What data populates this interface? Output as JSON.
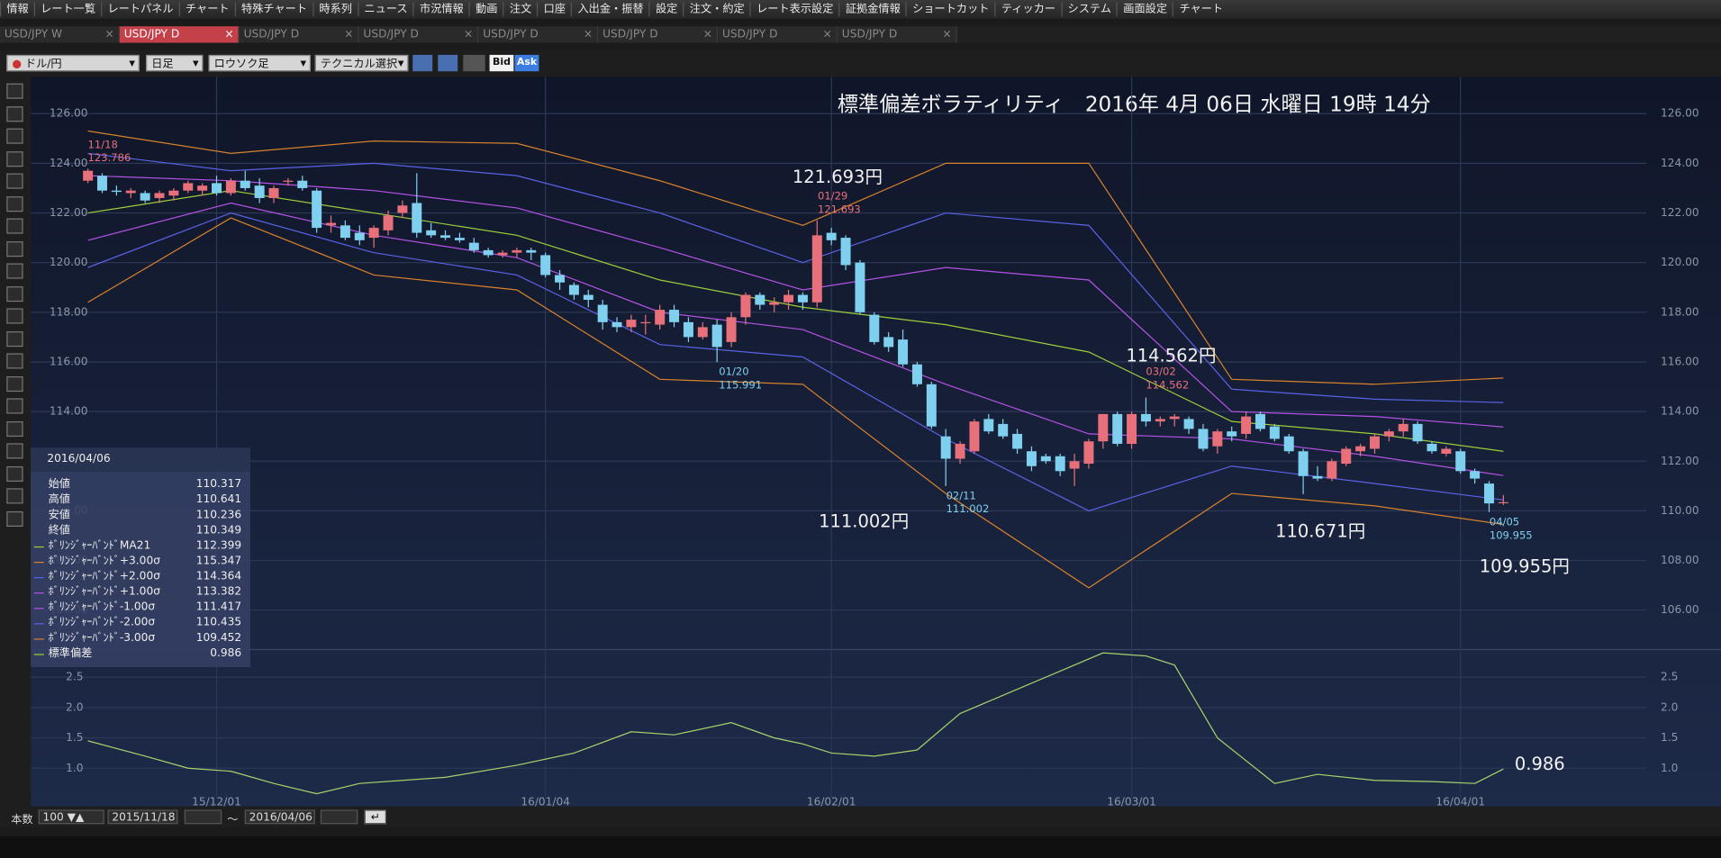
{
  "menu": [
    "情報",
    "レート一覧",
    "レートパネル",
    "チャート",
    "特殊チャート",
    "時系列",
    "ニュース",
    "市況情報",
    "動画",
    "注文",
    "口座",
    "入出金・振替",
    "設定",
    "注文・約定",
    "レート表示設定",
    "証拠金情報",
    "ショートカット",
    "ティッカー",
    "システム",
    "画面設定",
    "チャート"
  ],
  "tabs": [
    "USD/JPY W",
    "USD/JPY D",
    "USD/JPY D",
    "USD/JPY D",
    "USD/JPY D",
    "USD/JPY D",
    "USD/JPY D",
    "USD/JPY D"
  ],
  "controls": {
    "pair": "ドル/円",
    "period": "日足",
    "style": "ロウソク足",
    "technical": "テクニカル選択",
    "bid": "Bid",
    "ask": "Ask"
  },
  "info_panel": {
    "date": "2016/04/06",
    "rows": [
      [
        "始値",
        "110.317"
      ],
      [
        "高値",
        "110.641"
      ],
      [
        "安値",
        "110.236"
      ],
      [
        "終値",
        "110.349"
      ],
      [
        "ﾎﾞﾘﾝｼﾞｬｰﾊﾞﾝﾄﾞMA21",
        "112.399"
      ],
      [
        "ﾎﾞﾘﾝｼﾞｬｰﾊﾞﾝﾄﾞ+3.00σ",
        "115.347"
      ],
      [
        "ﾎﾞﾘﾝｼﾞｬｰﾊﾞﾝﾄﾞ+2.00σ",
        "114.364"
      ],
      [
        "ﾎﾞﾘﾝｼﾞｬｰﾊﾞﾝﾄﾞ+1.00σ",
        "113.382"
      ],
      [
        "ﾎﾞﾘﾝｼﾞｬｰﾊﾞﾝﾄﾞ-1.00σ",
        "111.417"
      ],
      [
        "ﾎﾞﾘﾝｼﾞｬｰﾊﾞﾝﾄﾞ-2.00σ",
        "110.435"
      ],
      [
        "ﾎﾞﾘﾝｼﾞｬｰﾊﾞﾝﾄﾞ-3.00σ",
        "109.452"
      ],
      [
        "標準偏差",
        "0.986"
      ]
    ]
  },
  "bottom_bar": {
    "count_label": "本数",
    "count": "100",
    "from": "2015/11/18",
    "separator": "～",
    "to": "2016/04/06"
  },
  "chart_data": [
    {
      "type": "candlestick",
      "title": "標準偏差ボラティリティ　2016年 4月 06日 水曜日 19時 14分",
      "xlim": [
        -4,
        109
      ],
      "xticks": [
        {
          "value": 9,
          "label": "15/12/01"
        },
        {
          "value": 32,
          "label": "16/01/04"
        },
        {
          "value": 52,
          "label": "16/02/01"
        },
        {
          "value": 73,
          "label": "16/03/01"
        },
        {
          "value": 96,
          "label": "16/04/01"
        }
      ],
      "ylim": [
        104.5,
        126.6
      ],
      "yticks": [
        {
          "value": 106,
          "label": "106.00"
        },
        {
          "value": 108,
          "label": "108.00"
        },
        {
          "value": 110,
          "label": "110.00"
        },
        {
          "value": 112,
          "label": "112.00"
        },
        {
          "value": 114,
          "label": "114.00"
        },
        {
          "value": 116,
          "label": "116.00"
        },
        {
          "value": 118,
          "label": "118.00"
        },
        {
          "value": 120,
          "label": "120.00"
        },
        {
          "value": 122,
          "label": "122.00"
        },
        {
          "value": 124,
          "label": "124.00"
        },
        {
          "value": 126,
          "label": "126.00"
        }
      ],
      "grid": true,
      "up_color": "#e8707a",
      "down_color": "#7fd0ef",
      "candles": [
        [
          123.3,
          123.786,
          123.2,
          123.7
        ],
        [
          123.5,
          123.6,
          122.8,
          122.9
        ],
        [
          122.9,
          123.1,
          122.7,
          122.85
        ],
        [
          122.8,
          123.0,
          122.6,
          122.9
        ],
        [
          122.8,
          122.9,
          122.4,
          122.5
        ],
        [
          122.6,
          122.9,
          122.4,
          122.8
        ],
        [
          122.7,
          123.0,
          122.5,
          122.9
        ],
        [
          122.9,
          123.3,
          122.8,
          123.2
        ],
        [
          122.9,
          123.2,
          122.7,
          123.1
        ],
        [
          123.2,
          123.5,
          122.7,
          122.8
        ],
        [
          122.8,
          123.4,
          122.7,
          123.3
        ],
        [
          123.3,
          123.7,
          122.9,
          123.0
        ],
        [
          123.1,
          123.4,
          122.4,
          122.6
        ],
        [
          122.6,
          123.1,
          122.4,
          123.0
        ],
        [
          123.3,
          123.4,
          123.1,
          123.3
        ],
        [
          123.3,
          123.5,
          122.9,
          123.0
        ],
        [
          122.9,
          123.0,
          121.2,
          121.4
        ],
        [
          121.5,
          121.9,
          121.2,
          121.6
        ],
        [
          121.5,
          121.7,
          120.9,
          121.0
        ],
        [
          121.2,
          121.5,
          120.7,
          120.9
        ],
        [
          121.0,
          121.5,
          120.6,
          121.4
        ],
        [
          121.3,
          122.1,
          121.1,
          121.9
        ],
        [
          122.0,
          122.5,
          121.8,
          122.3
        ],
        [
          122.4,
          123.6,
          121.0,
          121.2
        ],
        [
          121.3,
          121.6,
          121.0,
          121.1
        ],
        [
          121.1,
          121.3,
          120.9,
          121.0
        ],
        [
          121.0,
          121.2,
          120.8,
          120.9
        ],
        [
          120.8,
          121.0,
          120.4,
          120.5
        ],
        [
          120.5,
          120.6,
          120.2,
          120.3
        ],
        [
          120.3,
          120.5,
          120.2,
          120.4
        ],
        [
          120.4,
          120.6,
          120.2,
          120.5
        ],
        [
          120.5,
          120.6,
          120.1,
          120.4
        ],
        [
          120.3,
          120.4,
          119.4,
          119.5
        ],
        [
          119.5,
          119.7,
          118.9,
          119.2
        ],
        [
          119.1,
          119.2,
          118.5,
          118.7
        ],
        [
          118.7,
          118.9,
          118.2,
          118.5
        ],
        [
          118.3,
          118.5,
          117.3,
          117.6
        ],
        [
          117.6,
          117.8,
          117.2,
          117.4
        ],
        [
          117.4,
          117.9,
          117.2,
          117.7
        ],
        [
          117.6,
          117.9,
          117.1,
          117.6
        ],
        [
          117.5,
          118.3,
          117.3,
          118.1
        ],
        [
          118.1,
          118.3,
          117.4,
          117.6
        ],
        [
          117.6,
          117.8,
          116.8,
          117.0
        ],
        [
          117.0,
          117.6,
          116.9,
          117.4
        ],
        [
          117.5,
          117.7,
          115.991,
          116.6
        ],
        [
          116.8,
          118.0,
          116.6,
          117.8
        ],
        [
          117.8,
          118.8,
          117.5,
          118.7
        ],
        [
          118.7,
          118.8,
          118.1,
          118.3
        ],
        [
          118.3,
          118.6,
          118.0,
          118.4
        ],
        [
          118.4,
          118.9,
          118.1,
          118.7
        ],
        [
          118.7,
          118.8,
          118.1,
          118.4
        ],
        [
          118.4,
          121.693,
          118.2,
          121.1
        ],
        [
          121.2,
          121.4,
          120.7,
          120.9
        ],
        [
          121.0,
          121.1,
          119.7,
          119.9
        ],
        [
          120.0,
          120.1,
          117.9,
          118.0
        ],
        [
          117.9,
          118.0,
          116.7,
          116.8
        ],
        [
          117.0,
          117.2,
          116.4,
          116.6
        ],
        [
          116.9,
          117.3,
          115.8,
          115.9
        ],
        [
          115.9,
          116.0,
          115.0,
          115.1
        ],
        [
          115.1,
          115.2,
          113.3,
          113.4
        ],
        [
          113.0,
          113.3,
          111.002,
          112.1
        ],
        [
          112.1,
          112.8,
          111.9,
          112.7
        ],
        [
          112.4,
          113.7,
          112.3,
          113.6
        ],
        [
          113.7,
          113.9,
          113.1,
          113.2
        ],
        [
          113.5,
          113.7,
          112.9,
          113.0
        ],
        [
          113.1,
          113.3,
          112.3,
          112.5
        ],
        [
          112.4,
          112.6,
          111.6,
          111.8
        ],
        [
          112.2,
          112.3,
          111.9,
          112.0
        ],
        [
          112.2,
          112.3,
          111.4,
          111.6
        ],
        [
          111.7,
          112.3,
          111.0,
          112.0
        ],
        [
          111.9,
          112.9,
          111.7,
          112.8
        ],
        [
          112.8,
          113.9,
          112.5,
          113.9
        ],
        [
          113.9,
          114.0,
          112.6,
          112.7
        ],
        [
          112.7,
          114.0,
          112.5,
          113.9
        ],
        [
          113.9,
          114.562,
          113.4,
          113.6
        ],
        [
          113.6,
          113.8,
          113.4,
          113.7
        ],
        [
          113.7,
          113.9,
          113.4,
          113.8
        ],
        [
          113.7,
          113.8,
          113.1,
          113.3
        ],
        [
          113.3,
          113.5,
          112.4,
          112.5
        ],
        [
          112.6,
          113.3,
          112.3,
          113.2
        ],
        [
          113.2,
          113.4,
          112.8,
          113.0
        ],
        [
          113.1,
          114.0,
          112.9,
          113.8
        ],
        [
          113.9,
          114.0,
          113.2,
          113.3
        ],
        [
          113.4,
          113.5,
          112.8,
          112.9
        ],
        [
          113.0,
          113.1,
          112.3,
          112.4
        ],
        [
          112.4,
          112.5,
          110.671,
          111.4
        ],
        [
          111.4,
          111.8,
          111.2,
          111.3
        ],
        [
          111.3,
          112.1,
          111.2,
          112.0
        ],
        [
          111.9,
          112.6,
          111.8,
          112.5
        ],
        [
          112.4,
          112.7,
          112.2,
          112.6
        ],
        [
          112.5,
          113.1,
          112.3,
          113.0
        ],
        [
          113.0,
          113.3,
          112.8,
          113.2
        ],
        [
          113.2,
          113.7,
          113.0,
          113.5
        ],
        [
          113.5,
          113.6,
          112.7,
          112.8
        ],
        [
          112.7,
          112.8,
          112.3,
          112.4
        ],
        [
          112.3,
          112.6,
          112.2,
          112.5
        ],
        [
          112.4,
          112.5,
          111.5,
          111.6
        ],
        [
          111.6,
          111.7,
          111.1,
          111.3
        ],
        [
          111.1,
          111.2,
          109.955,
          110.3
        ],
        [
          110.317,
          110.641,
          110.236,
          110.349
        ]
      ],
      "series": [
        {
          "color": "#9ccf3a",
          "x": [
            0,
            10,
            20,
            30,
            40,
            50,
            60,
            70,
            80,
            90,
            99
          ],
          "values": [
            122.0,
            122.9,
            122.0,
            121.1,
            119.3,
            118.2,
            117.5,
            116.4,
            113.6,
            113.1,
            112.4
          ]
        },
        {
          "color": "#d9822b",
          "x": [
            0,
            10,
            20,
            30,
            40,
            50,
            60,
            70,
            80,
            90,
            99
          ],
          "values": [
            125.3,
            124.4,
            124.9,
            124.8,
            123.3,
            121.5,
            124.0,
            124.0,
            115.3,
            115.1,
            115.35
          ]
        },
        {
          "color": "#5a62e6",
          "x": [
            0,
            10,
            20,
            30,
            40,
            50,
            60,
            70,
            80,
            90,
            99
          ],
          "values": [
            124.4,
            123.7,
            124.0,
            123.5,
            122.0,
            120.0,
            122.0,
            121.5,
            114.9,
            114.5,
            114.36
          ]
        },
        {
          "color": "#b452e6",
          "x": [
            0,
            10,
            20,
            30,
            40,
            50,
            60,
            70,
            80,
            90,
            99
          ],
          "values": [
            123.5,
            123.3,
            122.9,
            122.2,
            120.6,
            118.9,
            119.8,
            119.3,
            114.0,
            113.8,
            113.38
          ]
        },
        {
          "color": "#b452e6",
          "x": [
            0,
            10,
            20,
            30,
            40,
            50,
            60,
            70,
            80,
            90,
            99
          ],
          "values": [
            120.9,
            122.4,
            121.1,
            120.2,
            118.0,
            117.3,
            115.1,
            113.1,
            112.9,
            112.2,
            111.42
          ]
        },
        {
          "color": "#5a62e6",
          "x": [
            0,
            10,
            20,
            30,
            40,
            50,
            60,
            70,
            80,
            90,
            99
          ],
          "values": [
            119.8,
            122.0,
            120.4,
            119.5,
            116.7,
            116.2,
            112.9,
            110.0,
            111.8,
            111.1,
            110.44
          ]
        },
        {
          "color": "#d9822b",
          "x": [
            0,
            10,
            20,
            30,
            40,
            50,
            60,
            70,
            80,
            90,
            99
          ],
          "values": [
            118.4,
            121.8,
            119.5,
            118.9,
            115.3,
            115.1,
            110.7,
            106.9,
            110.7,
            110.2,
            109.45
          ]
        }
      ],
      "annotations": [
        "121.693円",
        "114.562円",
        "111.002円",
        "110.671円",
        "109.955円"
      ],
      "markers": [
        {
          "date": "11/18",
          "value": "123.786"
        },
        {
          "date": "01/29",
          "value": "121.693"
        },
        {
          "date": "01/20",
          "value": "115.991"
        },
        {
          "date": "02/11",
          "value": "111.002"
        },
        {
          "date": "03/02",
          "value": "114.562"
        },
        {
          "date": "04/05",
          "value": "109.955"
        }
      ]
    },
    {
      "type": "line",
      "color": "#a6d46a",
      "xlim": [
        -4,
        109
      ],
      "ylim": [
        0.37,
        2.9
      ],
      "yticks": [
        {
          "value": 1.0,
          "label": "1.0"
        },
        1.5,
        {
          "value": 2.0,
          "label": "2.0"
        },
        2.5
      ],
      "x": [
        0,
        4,
        7,
        10,
        13,
        16,
        19,
        25,
        30,
        34,
        38,
        41,
        45,
        48,
        50,
        52,
        55,
        58,
        61,
        64,
        68,
        71,
        74,
        76,
        79,
        83,
        86,
        90,
        94,
        97,
        99
      ],
      "values": [
        1.45,
        1.2,
        1.0,
        0.95,
        0.75,
        0.58,
        0.75,
        0.85,
        1.05,
        1.25,
        1.6,
        1.55,
        1.75,
        1.5,
        1.4,
        1.25,
        1.2,
        1.3,
        1.9,
        2.2,
        2.6,
        2.9,
        2.85,
        2.7,
        1.5,
        0.75,
        0.9,
        0.8,
        0.78,
        0.75,
        0.986
      ],
      "annotation": "0.986"
    }
  ]
}
